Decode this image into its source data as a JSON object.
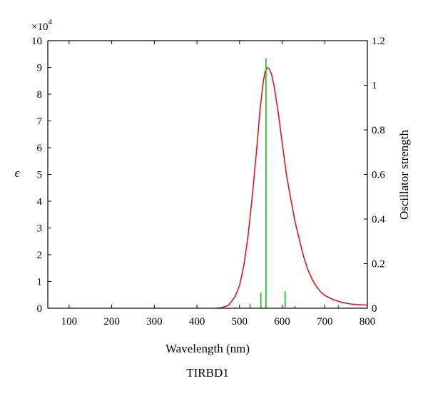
{
  "chart_data": {
    "type": "line",
    "caption": "TIRBD1",
    "xlabel": "Wavelength (nm)",
    "ylabel_left": "ϵ",
    "ylabel_right": "Oscillator strength",
    "left_axis_multiplier": "×10",
    "left_axis_multiplier_exp": "4",
    "xlim": [
      50,
      800
    ],
    "ylim_left": [
      0,
      10
    ],
    "ylim_right": [
      0,
      1.2
    ],
    "x_ticks": [
      "100",
      "200",
      "300",
      "400",
      "500",
      "600",
      "700",
      "800"
    ],
    "y_left_ticks": [
      "0",
      "1",
      "2",
      "3",
      "4",
      "5",
      "6",
      "7",
      "8",
      "9",
      "10"
    ],
    "y_right_ticks": [
      "0",
      "0.2",
      "0.4",
      "0.6",
      "0.8",
      "1",
      "1.2"
    ],
    "colors": {
      "spectrum": "#e8141c",
      "sticks": "#22c328",
      "axes": "#000000"
    },
    "series": [
      {
        "type": "line",
        "axis": "left",
        "x": [
          445,
          460,
          475,
          490,
          500,
          510,
          520,
          530,
          540,
          548,
          555,
          560,
          565,
          570,
          575,
          580,
          590,
          600,
          610,
          620,
          630,
          640,
          650,
          660,
          670,
          680,
          690,
          700,
          720,
          740,
          760,
          780,
          800
        ],
        "y": [
          0.0,
          0.03,
          0.12,
          0.45,
          0.85,
          1.6,
          2.7,
          4.2,
          5.9,
          7.4,
          8.4,
          8.85,
          9.0,
          8.95,
          8.75,
          8.4,
          7.4,
          6.2,
          5.0,
          4.1,
          3.25,
          2.6,
          1.95,
          1.45,
          1.1,
          0.82,
          0.62,
          0.48,
          0.32,
          0.22,
          0.16,
          0.13,
          0.12
        ]
      },
      {
        "type": "stick",
        "axis": "right",
        "x": [
          525,
          550,
          562,
          607,
          630,
          732
        ],
        "y": [
          0.02,
          0.07,
          1.12,
          0.075,
          0.01,
          0.015
        ]
      }
    ],
    "grid": false,
    "legend": "none"
  }
}
